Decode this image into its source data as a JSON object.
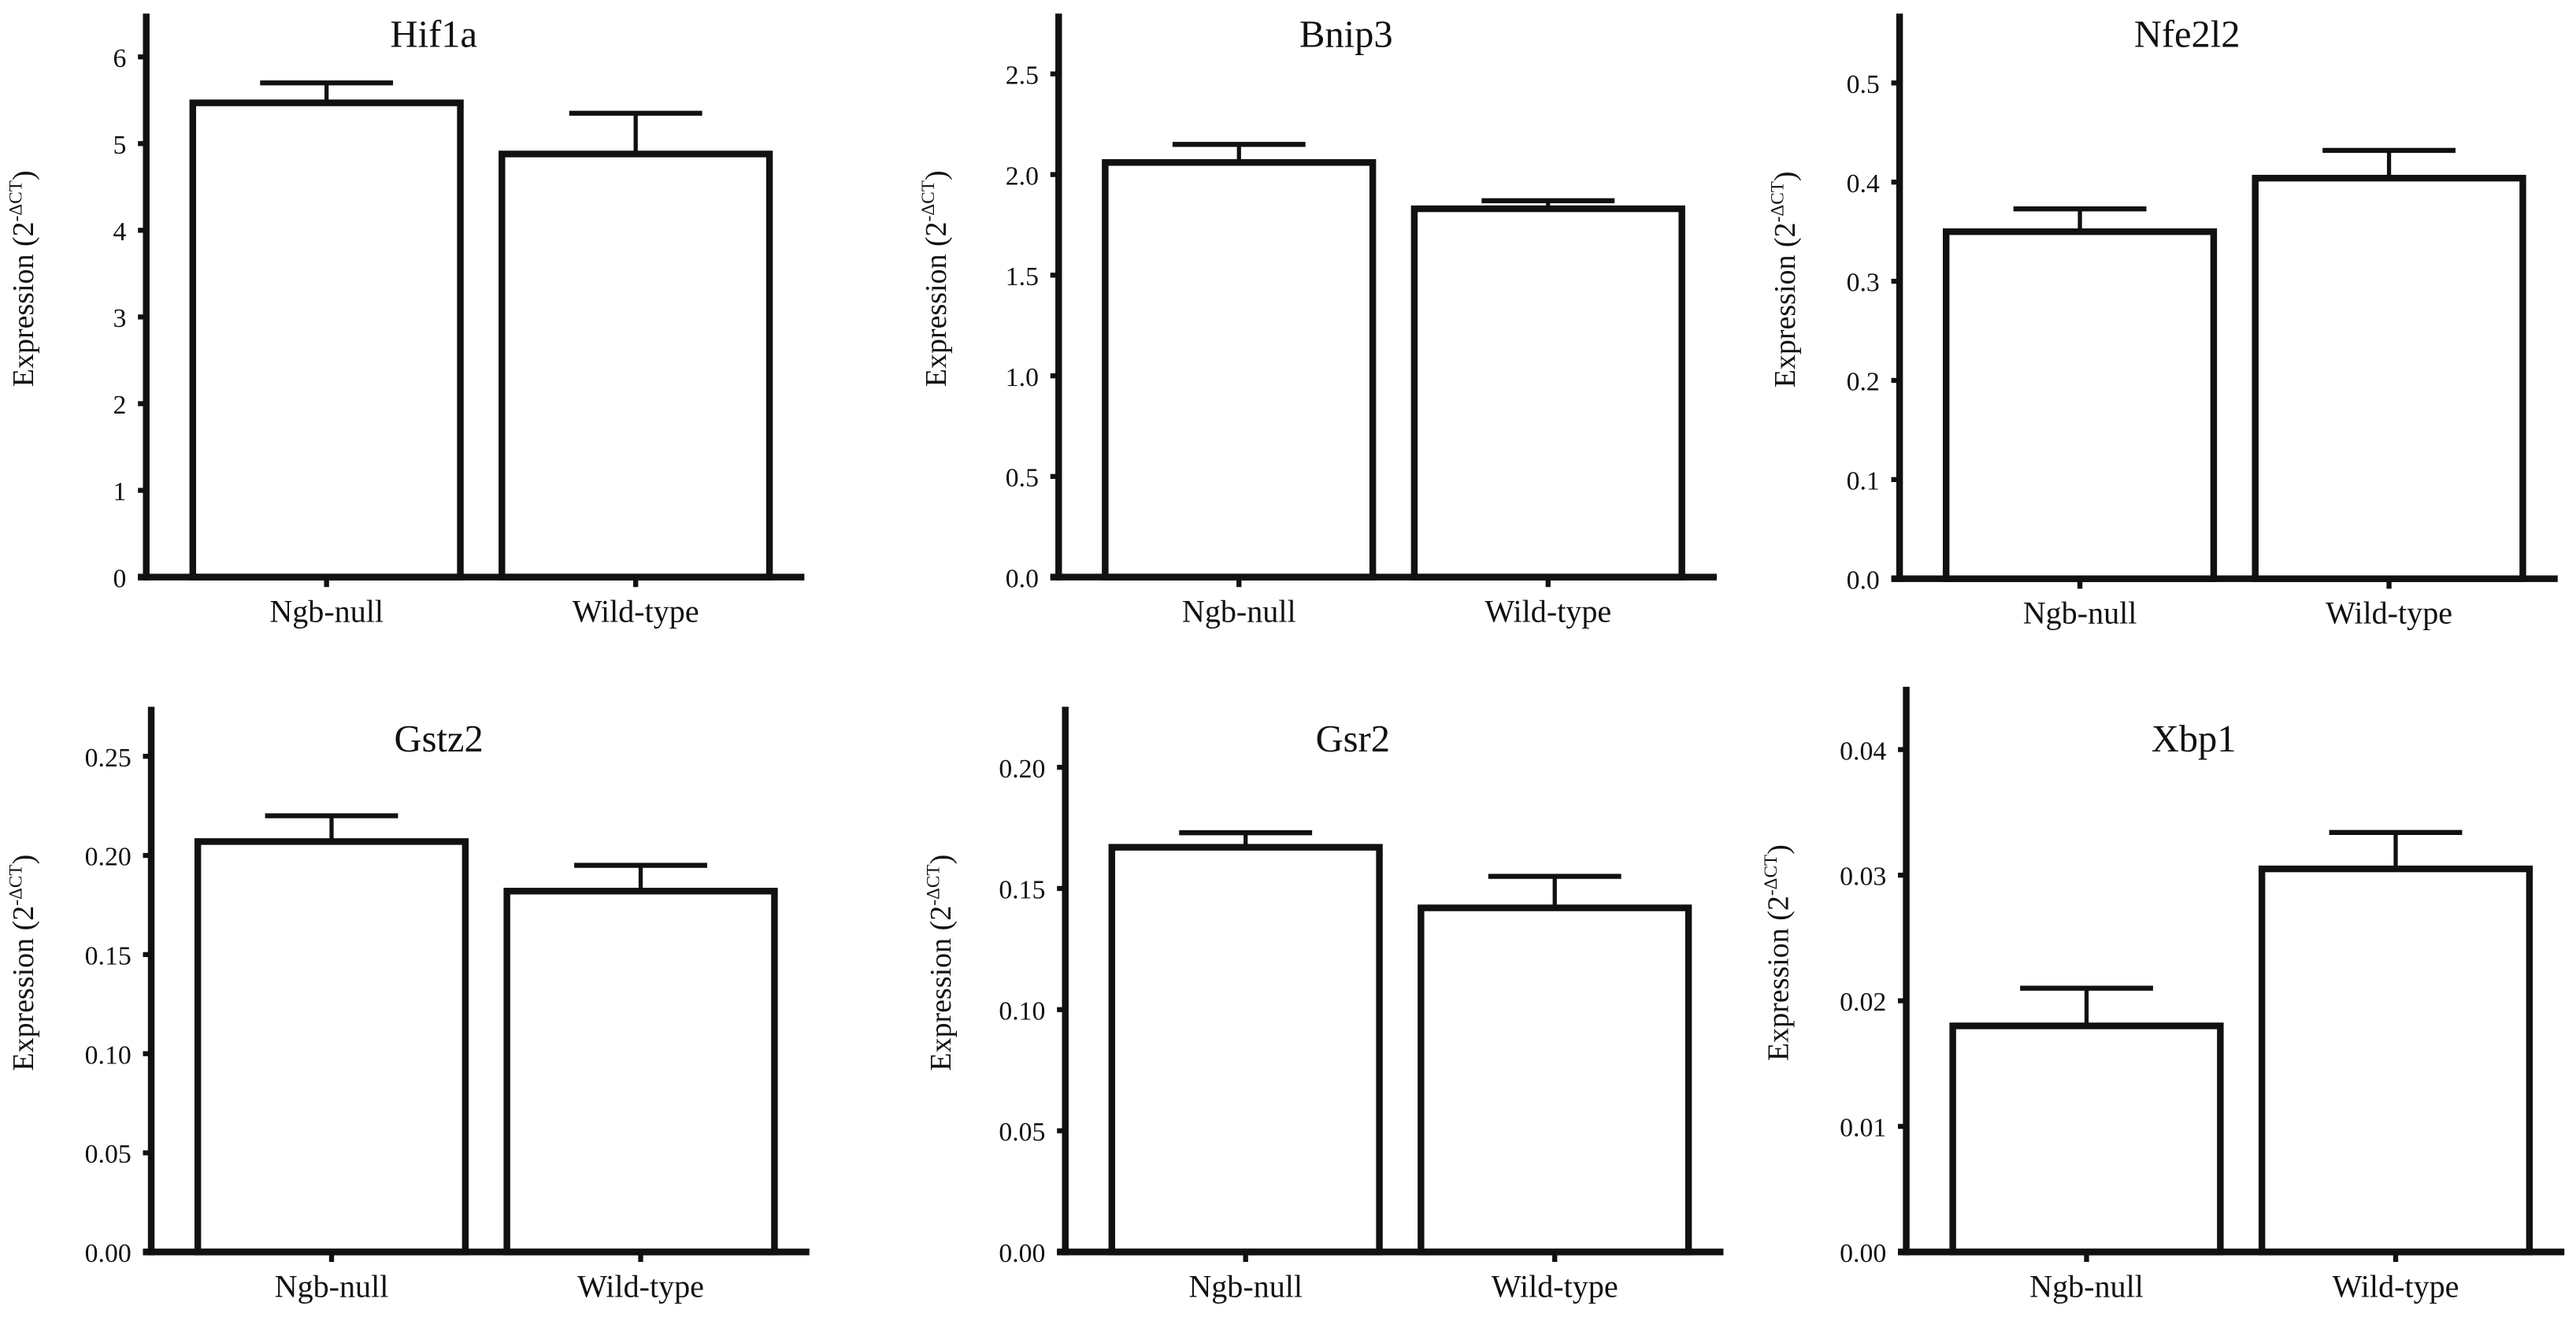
{
  "chart_data": [
    {
      "type": "bar",
      "title": "Hif1a",
      "categories": [
        "Ngb-null",
        "Wild-type"
      ],
      "values": [
        5.47,
        4.88
      ],
      "errors": [
        0.23,
        0.47
      ],
      "ylim": [
        0,
        6.5
      ],
      "yticks": [
        0,
        1,
        2,
        3,
        4,
        5,
        6
      ],
      "ytick_labels": [
        "0",
        "1",
        "2",
        "3",
        "4",
        "5",
        "6"
      ],
      "ylabel": {
        "main": "Expression",
        "open": "(2",
        "sup": "-ΔCT",
        "close": ")"
      },
      "xlabel": ""
    },
    {
      "type": "bar",
      "title": "Bnip3",
      "categories": [
        "Ngb-null",
        "Wild-type"
      ],
      "values": [
        2.06,
        1.83
      ],
      "errors": [
        0.09,
        0.04
      ],
      "ylim": [
        0,
        2.8
      ],
      "yticks": [
        0,
        0.5,
        1,
        1.5,
        2,
        2.5
      ],
      "ytick_labels": [
        "0.0",
        "0.5",
        "1.0",
        "1.5",
        "2.0",
        "2.5"
      ],
      "ylabel": {
        "main": "Expression",
        "open": "(2",
        "sup": "-ΔCT",
        "close": ")"
      },
      "xlabel": ""
    },
    {
      "type": "bar",
      "title": "Nfe2l2",
      "categories": [
        "Ngb-null",
        "Wild-type"
      ],
      "values": [
        0.35,
        0.404
      ],
      "errors": [
        0.023,
        0.028
      ],
      "ylim": [
        0,
        0.57
      ],
      "yticks": [
        0,
        0.1,
        0.2,
        0.3,
        0.4,
        0.5
      ],
      "ytick_labels": [
        "0.0",
        "0.1",
        "0.2",
        "0.3",
        "0.4",
        "0.5"
      ],
      "ylabel": {
        "main": "Expression",
        "open": "(2",
        "sup": "-ΔCT",
        "close": ")"
      },
      "xlabel": ""
    },
    {
      "type": "bar",
      "title": "Gstz2",
      "categories": [
        "Ngb-null",
        "Wild-type"
      ],
      "values": [
        0.207,
        0.182
      ],
      "errors": [
        0.013,
        0.013
      ],
      "ylim": [
        0,
        0.275
      ],
      "yticks": [
        0,
        0.05,
        0.1,
        0.15,
        0.2,
        0.25
      ],
      "ytick_labels": [
        "0.00",
        "0.05",
        "0.10",
        "0.15",
        "0.20",
        "0.25"
      ],
      "ylabel": {
        "main": "Expression",
        "open": "(2",
        "sup": "-ΔCT",
        "close": ")"
      },
      "xlabel": ""
    },
    {
      "type": "bar",
      "title": "Gsr2",
      "categories": [
        "Ngb-null",
        "Wild-type"
      ],
      "values": [
        0.167,
        0.142
      ],
      "errors": [
        0.006,
        0.013
      ],
      "ylim": [
        0,
        0.225
      ],
      "yticks": [
        0,
        0.05,
        0.1,
        0.15,
        0.2
      ],
      "ytick_labels": [
        "0.00",
        "0.05",
        "0.10",
        "0.15",
        "0.20"
      ],
      "ylabel": {
        "main": "Expression",
        "open": "(2",
        "sup": "-ΔCT",
        "close": ")"
      },
      "xlabel": ""
    },
    {
      "type": "bar",
      "title": "Xbp1",
      "categories": [
        "Ngb-null",
        "Wild-type"
      ],
      "values": [
        0.018,
        0.0305
      ],
      "errors": [
        0.003,
        0.0029
      ],
      "ylim": [
        0,
        0.045
      ],
      "yticks": [
        0,
        0.01,
        0.02,
        0.03,
        0.04
      ],
      "ytick_labels": [
        "0.00",
        "0.01",
        "0.02",
        "0.03",
        "0.04"
      ],
      "ylabel": {
        "main": "Expression",
        "open": "(2",
        "sup": "-ΔCT",
        "close": ")"
      },
      "xlabel": ""
    }
  ]
}
